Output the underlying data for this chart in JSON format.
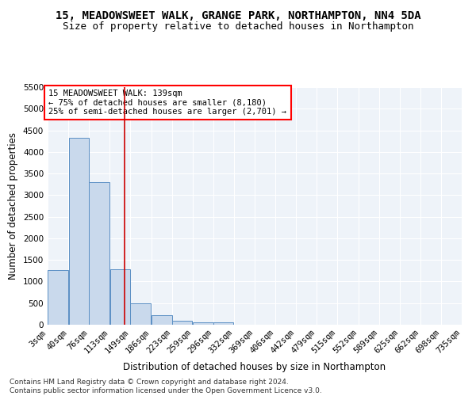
{
  "title": "15, MEADOWSWEET WALK, GRANGE PARK, NORTHAMPTON, NN4 5DA",
  "subtitle": "Size of property relative to detached houses in Northampton",
  "xlabel": "Distribution of detached houses by size in Northampton",
  "ylabel": "Number of detached properties",
  "bar_color": "#c9d9ec",
  "bar_edge_color": "#5b8fc4",
  "background_color": "#eef3f9",
  "grid_color": "#ffffff",
  "annotation_line1": "15 MEADOWSWEET WALK: 139sqm",
  "annotation_line2": "← 75% of detached houses are smaller (8,180)",
  "annotation_line3": "25% of semi-detached houses are larger (2,701) →",
  "vline_x": 139,
  "vline_color": "#cc0000",
  "bin_edges": [
    3,
    40,
    76,
    113,
    149,
    186,
    223,
    259,
    296,
    332,
    369,
    406,
    442,
    479,
    515,
    552,
    589,
    625,
    662,
    698,
    735
  ],
  "bar_heights": [
    1270,
    4330,
    3300,
    1290,
    490,
    215,
    90,
    60,
    55,
    0,
    0,
    0,
    0,
    0,
    0,
    0,
    0,
    0,
    0,
    0
  ],
  "ylim": [
    0,
    5500
  ],
  "yticks": [
    0,
    500,
    1000,
    1500,
    2000,
    2500,
    3000,
    3500,
    4000,
    4500,
    5000,
    5500
  ],
  "footer": "Contains HM Land Registry data © Crown copyright and database right 2024.\nContains public sector information licensed under the Open Government Licence v3.0.",
  "title_fontsize": 10,
  "subtitle_fontsize": 9,
  "axis_label_fontsize": 8.5,
  "tick_fontsize": 7.5,
  "annotation_fontsize": 7.5,
  "footer_fontsize": 6.5
}
